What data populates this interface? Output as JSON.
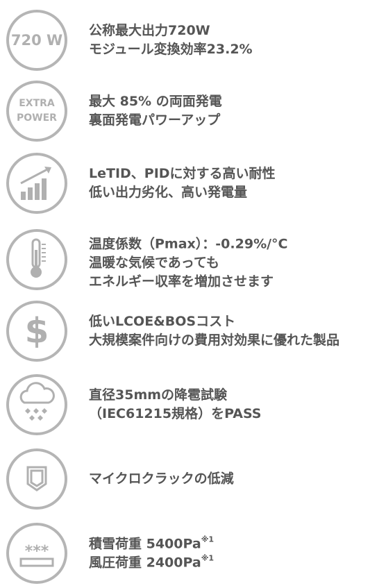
{
  "items": [
    {
      "icon_text": [
        "720 W"
      ],
      "lines": [
        "公称最大出力720W",
        "モジュール変換効率23.2%"
      ]
    },
    {
      "icon_text": [
        "EXTRA",
        "POWER"
      ],
      "lines": [
        "最大 85% の両面発電",
        "裏面発電パワーアップ"
      ]
    },
    {
      "lines": [
        "LeTID、PIDに対する高い耐性",
        "低い出力劣化、高い発電量"
      ]
    },
    {
      "lines": [
        "温度係数（Pmax）：-0.29%/°C",
        "温暖な気候であっても",
        "エネルギー収率を増加させます"
      ]
    },
    {
      "icon_text": [
        "$"
      ],
      "lines": [
        "低いLCOE&BOSコスト",
        "大規模案件向けの費用対効果に優れた製品"
      ]
    },
    {
      "lines": [
        "直径35mmの降雹試験",
        "（IEC61215規格）をPASS"
      ]
    },
    {
      "lines": [
        "マイクロクラックの低減"
      ]
    },
    {
      "icon_text": [
        "***"
      ],
      "lines": [
        {
          "text": "積雪荷重 5400Pa",
          "sup": "※1"
        },
        {
          "text": "風圧荷重 2400Pa",
          "sup": "※1"
        }
      ]
    }
  ]
}
